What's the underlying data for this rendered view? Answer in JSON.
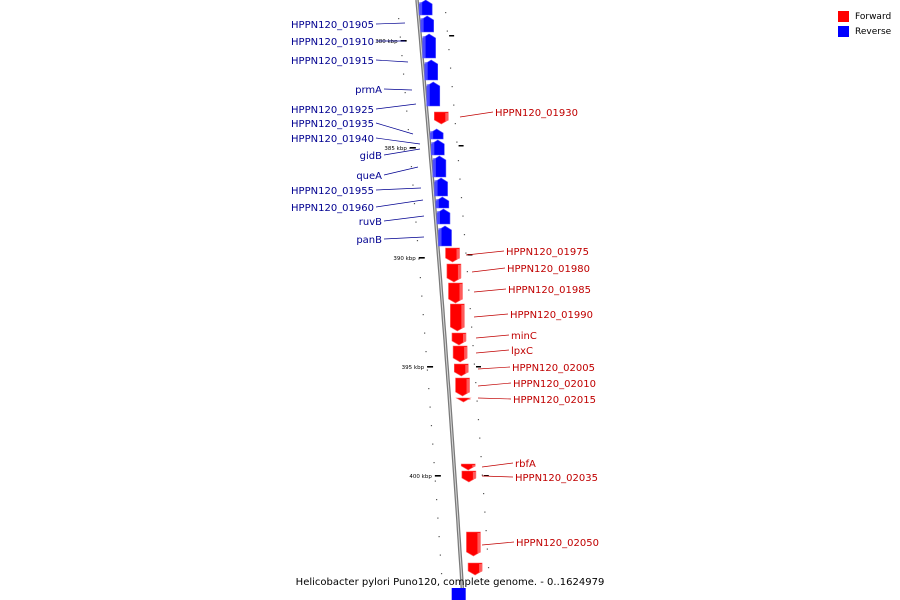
{
  "legend": {
    "forward_label": "Forward",
    "reverse_label": "Reverse",
    "forward_color": "#ff0000",
    "reverse_color": "#0000ff"
  },
  "caption": "Helicobacter pylori Puno120, complete genome. - 0..1624979",
  "colors": {
    "backbone": "#9a9a9a",
    "forward": "#ff0000",
    "reverse": "#0000ff",
    "forward_label": "#c00000",
    "reverse_label": "#000090"
  },
  "scale_labels": [
    "380 kbp",
    "385 kbp",
    "390 kbp",
    "395 kbp",
    "400 kbp"
  ],
  "reverse_genes": [
    "HPPN120_01905",
    "HPPN120_01910",
    "HPPN120_01915",
    "prmA",
    "HPPN120_01925",
    "HPPN120_01935",
    "HPPN120_01940",
    "gidB",
    "queA",
    "HPPN120_01955",
    "HPPN120_01960",
    "ruvB",
    "panB"
  ],
  "forward_genes": [
    "HPPN120_01930",
    "HPPN120_01975",
    "HPPN120_01980",
    "HPPN120_01985",
    "HPPN120_01990",
    "minC",
    "lpxC",
    "HPPN120_02005",
    "HPPN120_02010",
    "HPPN120_02015",
    "rbfA",
    "HPPN120_02035",
    "HPPN120_02050"
  ]
}
